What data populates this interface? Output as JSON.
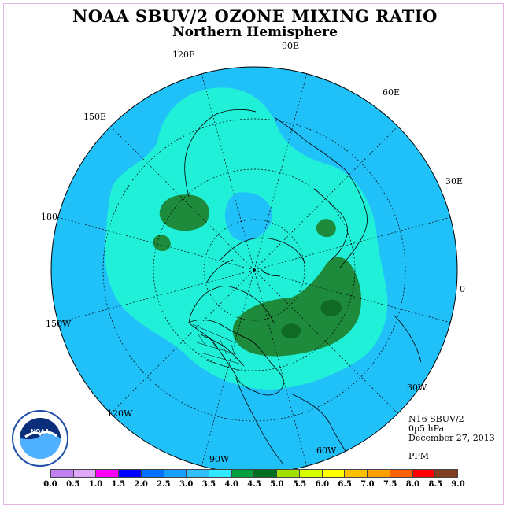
{
  "title": "NOAA SBUV/2 OZONE MIXING RATIO",
  "subtitle": "Northern Hemisphere",
  "longitude_labels": [
    "120E",
    "90E",
    "60E",
    "30E",
    "0",
    "30W",
    "60W",
    "90W",
    "120W",
    "150W",
    "180",
    "150E"
  ],
  "info": {
    "instrument": "N16 SBUV/2",
    "level": "0p5 hPa",
    "date": "December 27, 2013",
    "units": "PPM"
  },
  "logo_text": "NOAA",
  "colorbar": {
    "labels": [
      "0.0",
      "0.5",
      "1.0",
      "1.5",
      "2.0",
      "2.5",
      "3.0",
      "3.5",
      "4.0",
      "4.5",
      "5.0",
      "5.5",
      "6.0",
      "6.5",
      "7.0",
      "7.5",
      "8.0",
      "8.5",
      "9.0"
    ],
    "colors": [
      "#c080f0",
      "#e0a8f8",
      "#ff00ff",
      "#0000ff",
      "#0070ff",
      "#18a0ff",
      "#30c0ff",
      "#30e8ff",
      "#00a040",
      "#007020",
      "#a0e000",
      "#d8ff00",
      "#ffff00",
      "#ffc000",
      "#ffa000",
      "#ff6000",
      "#ff0000",
      "#804020"
    ]
  },
  "map_colors": {
    "background": "#20c0f8",
    "level_3_5": "#20f0d8",
    "level_4_0": "#1e8a3c",
    "level_4_5": "#0f6a26",
    "coast": "#000000",
    "grid": "#000000"
  }
}
